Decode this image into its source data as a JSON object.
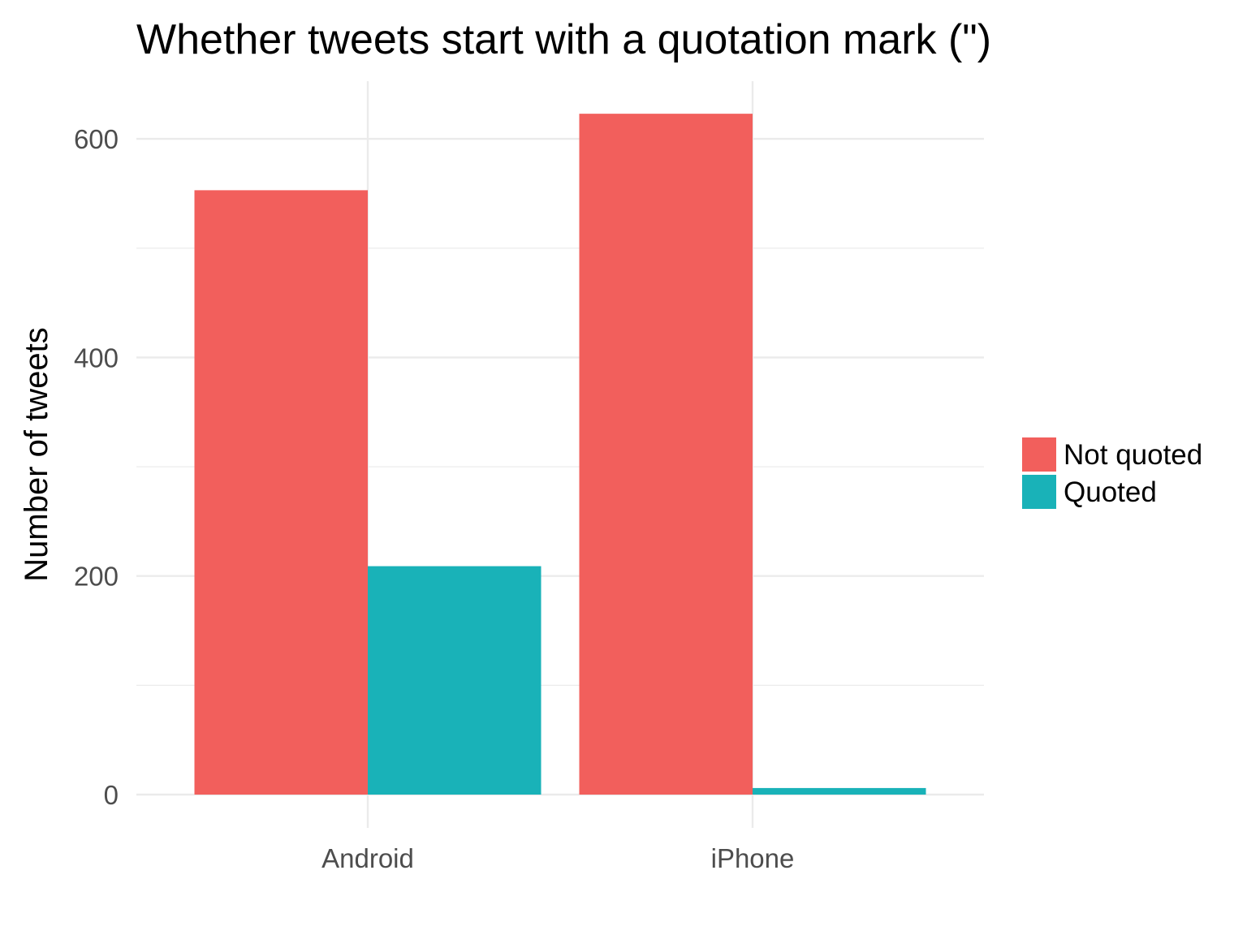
{
  "chart_data": {
    "type": "bar",
    "layout": "dodged",
    "title": "Whether tweets start with a quotation mark (\")",
    "xlabel": "",
    "ylabel": "Number of tweets",
    "categories": [
      "Android",
      "iPhone"
    ],
    "series": [
      {
        "name": "Not quoted",
        "color": "#f25f5c",
        "values": [
          553,
          623
        ]
      },
      {
        "name": "Quoted",
        "color": "#19b2b8",
        "values": [
          209,
          6
        ]
      }
    ],
    "ylim": [
      -52,
      650
    ],
    "yticks": [
      0,
      200,
      400,
      600
    ],
    "yminor": [
      100,
      300,
      500
    ],
    "grid": true,
    "legend": "right",
    "legend_title": ""
  }
}
